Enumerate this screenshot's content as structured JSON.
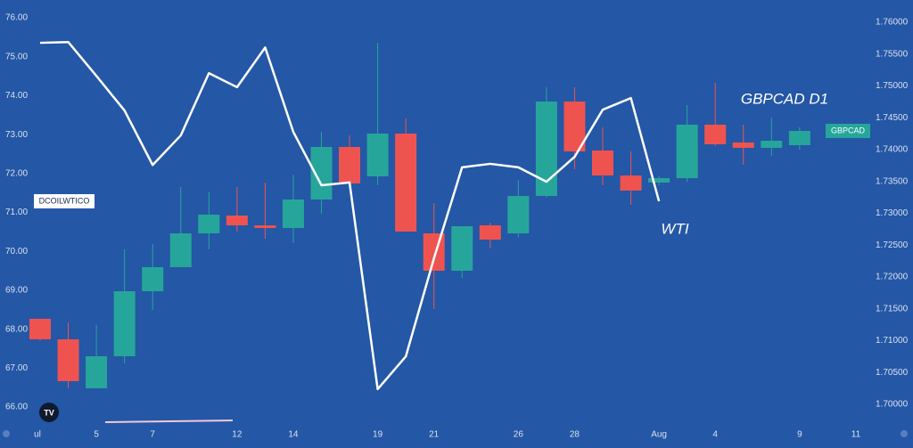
{
  "chart_data": {
    "type": "candlestick",
    "categories": [
      "ul",
      null,
      "5",
      null,
      "7",
      null,
      null,
      "12",
      null,
      "14",
      null,
      null,
      "19",
      null,
      "21",
      null,
      null,
      "26",
      null,
      "28",
      null,
      null,
      "Aug",
      null,
      "4",
      null,
      null,
      "9",
      null,
      "11"
    ],
    "ylim": [
      65.52,
      76.46
    ],
    "yticks": [
      {
        "value": 66,
        "label": "66.00"
      },
      {
        "value": 67,
        "label": "67.00"
      },
      {
        "value": 68,
        "label": "68.00"
      },
      {
        "value": 69,
        "label": "69.00"
      },
      {
        "value": 70,
        "label": "70.00"
      },
      {
        "value": 71,
        "label": "71.00"
      },
      {
        "value": 72,
        "label": "72.00"
      },
      {
        "value": 73,
        "label": "73.00"
      },
      {
        "value": 74,
        "label": "74.00"
      },
      {
        "value": 75,
        "label": "75.00"
      },
      {
        "value": 76,
        "label": "76.00"
      }
    ],
    "y2lim": [
      1.69664,
      1.7635
    ],
    "y2ticks": [
      {
        "value": 1.7,
        "label": "1.70000"
      },
      {
        "value": 1.705,
        "label": "1.70500"
      },
      {
        "value": 1.71,
        "label": "1.71000"
      },
      {
        "value": 1.715,
        "label": "1.71500"
      },
      {
        "value": 1.72,
        "label": "1.72000"
      },
      {
        "value": 1.725,
        "label": "1.72500"
      },
      {
        "value": 1.73,
        "label": "1.73000"
      },
      {
        "value": 1.735,
        "label": "1.73500"
      },
      {
        "value": 1.74,
        "label": "1.74000"
      },
      {
        "value": 1.745,
        "label": "1.74500"
      },
      {
        "value": 1.75,
        "label": "1.75000"
      },
      {
        "value": 1.755,
        "label": "1.75500"
      },
      {
        "value": 1.76,
        "label": "1.76000"
      }
    ],
    "series": [
      {
        "name": "GBPCAD",
        "type": "candlestick",
        "axis": "y2",
        "up_color": "#26a69a",
        "down_color": "#ef5350",
        "open": [
          1.71343,
          1.71021,
          1.70252,
          1.70755,
          1.71776,
          1.72154,
          1.72685,
          1.72965,
          1.72811,
          1.72769,
          1.73217,
          1.74042,
          1.7358,
          1.74252,
          1.72685,
          1.72098,
          1.72811,
          1.72685,
          1.73273,
          1.74755,
          1.73986,
          1.73594,
          1.73483,
          1.73552,
          1.74392,
          1.74112,
          1.74028,
          1.7407,
          null,
          null
        ],
        "high": [
          1.7135,
          1.71287,
          1.71245,
          1.72434,
          1.72518,
          1.73413,
          1.73329,
          1.73413,
          1.73483,
          1.73608,
          1.7428,
          1.74224,
          1.75678,
          1.7449,
          1.73161,
          1.72797,
          1.72853,
          1.73524,
          1.74979,
          1.74979,
          1.7435,
          1.73972,
          1.7358,
          1.74699,
          1.75049,
          1.74392,
          1.74503,
          1.7435,
          null,
          null
        ],
        "low": [
          1.71,
          1.70252,
          1.70252,
          1.70643,
          1.71483,
          1.72154,
          1.72434,
          1.72713,
          1.72601,
          1.72531,
          1.72993,
          1.73413,
          1.73441,
          1.72713,
          1.71497,
          1.71986,
          1.72448,
          1.72629,
          1.73245,
          1.73692,
          1.73441,
          1.73133,
          1.73441,
          1.73497,
          1.74056,
          1.73762,
          1.73902,
          1.74,
          null,
          null
        ],
        "close": [
          1.71021,
          1.70364,
          1.70755,
          1.71776,
          1.72154,
          1.72685,
          1.72979,
          1.72811,
          1.72769,
          1.73217,
          1.74042,
          1.73469,
          1.74252,
          1.72713,
          1.72098,
          1.72797,
          1.72587,
          1.73273,
          1.74755,
          1.73972,
          1.73594,
          1.73357,
          1.73552,
          1.74392,
          1.74084,
          1.74028,
          1.7414,
          1.74294,
          null,
          null
        ]
      },
      {
        "name": "DCOILWTICO",
        "type": "line",
        "color": "#ffffff",
        "values": [
          75.36,
          75.38,
          74.51,
          73.62,
          72.22,
          72.98,
          74.58,
          74.22,
          75.24,
          73.07,
          71.7,
          71.77,
          66.46,
          67.3,
          69.82,
          72.16,
          72.25,
          72.16,
          71.79,
          72.43,
          73.64,
          73.94,
          71.29,
          null,
          null,
          null,
          null,
          null,
          null,
          null
        ]
      }
    ],
    "annotations": [
      "GBPCAD D1",
      "WTI"
    ]
  }
}
